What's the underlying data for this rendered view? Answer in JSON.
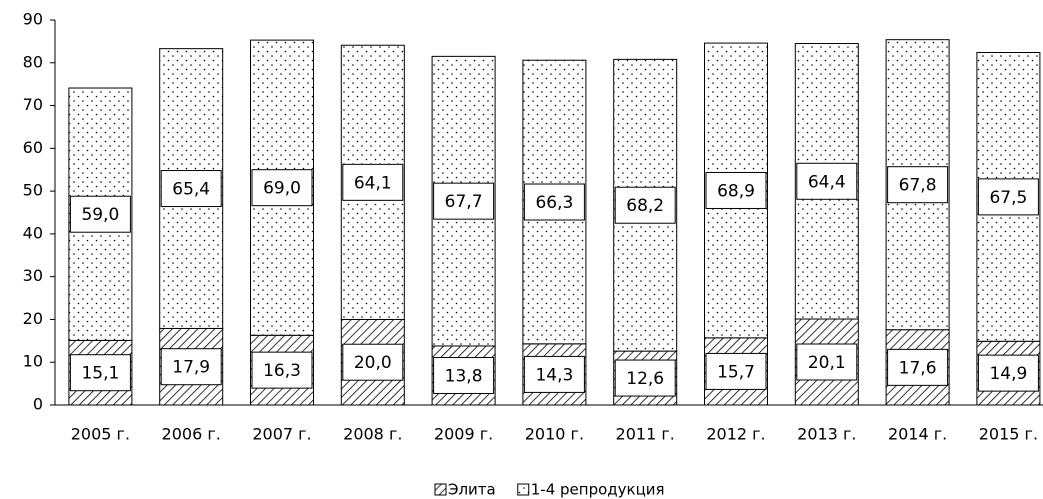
{
  "chart_data": {
    "type": "stacked_bar",
    "categories": [
      "2005 г.",
      "2006 г.",
      "2007 г.",
      "2008 г.",
      "2009 г.",
      "2010 г.",
      "2011 г.",
      "2012 г.",
      "2013 г.",
      "2014 г.",
      "2015 г."
    ],
    "series": [
      {
        "name": "Элита",
        "values": [
          15.1,
          17.9,
          16.3,
          20.0,
          13.8,
          14.3,
          12.6,
          15.7,
          20.1,
          17.6,
          14.9
        ],
        "value_labels": [
          "15,1",
          "17,9",
          "16,3",
          "20,0",
          "13,8",
          "14,3",
          "12,6",
          "15,7",
          "20,1",
          "17,6",
          "14,9"
        ]
      },
      {
        "name": "1-4 репродукция",
        "values": [
          59.0,
          65.4,
          69.0,
          64.1,
          67.7,
          66.3,
          68.2,
          68.9,
          64.4,
          67.8,
          67.5
        ],
        "value_labels": [
          "59,0",
          "65,4",
          "69,0",
          "64,1",
          "67,7",
          "66,3",
          "68,2",
          "68,9",
          "64,4",
          "67,8",
          "67,5"
        ]
      }
    ],
    "ylim": [
      0,
      90
    ],
    "yticks": [
      0,
      10,
      20,
      30,
      40,
      50,
      60,
      70,
      80,
      90
    ],
    "legend": "bottom"
  }
}
